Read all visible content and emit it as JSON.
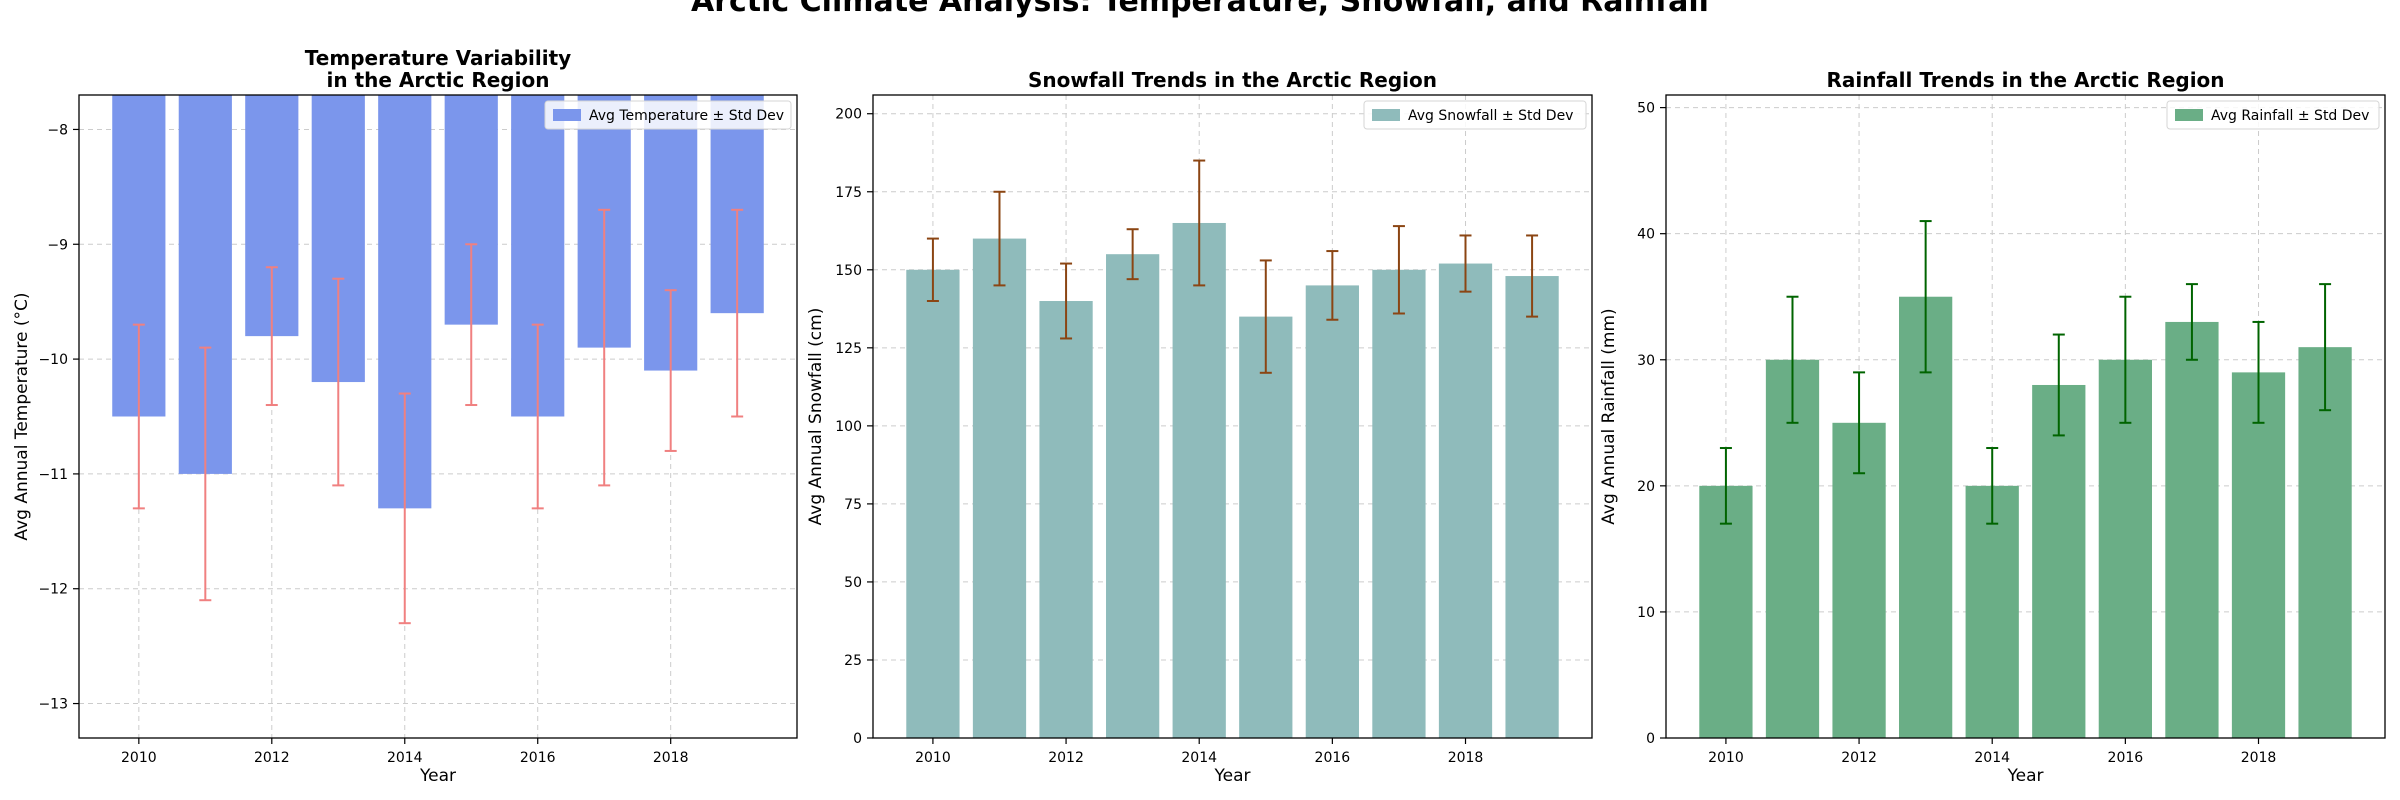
{
  "figure": {
    "suptitle": "Arctic Climate Analysis: Temperature, Snowfall, and Rainfall"
  },
  "chart_data": [
    {
      "type": "bar",
      "title": "Temperature Variability\nin the Arctic Region",
      "xlabel": "Year",
      "ylabel": "Avg Annual Temperature (°C)",
      "categories": [
        2010,
        2011,
        2012,
        2013,
        2014,
        2015,
        2016,
        2017,
        2018,
        2019
      ],
      "x_ticks": [
        2010,
        2012,
        2014,
        2016,
        2018
      ],
      "ylim": [
        -13.3,
        -7.7
      ],
      "y_ticks": [
        -13,
        -12,
        -11,
        -10,
        -9,
        -8
      ],
      "series": [
        {
          "name": "Avg Temperature ± Std Dev",
          "values": [
            -10.5,
            -11.0,
            -9.8,
            -10.2,
            -11.3,
            -9.7,
            -10.5,
            -9.9,
            -10.1,
            -9.6
          ],
          "errors": [
            0.8,
            1.1,
            0.6,
            0.9,
            1.0,
            0.7,
            0.8,
            1.2,
            0.7,
            0.9
          ]
        }
      ],
      "colors": {
        "bar": "#7b96ec",
        "error": "#f08080"
      },
      "legend": "upper-right",
      "grid": true
    },
    {
      "type": "bar",
      "title": "Snowfall Trends in the Arctic Region",
      "xlabel": "Year",
      "ylabel": "Avg Annual Snowfall (cm)",
      "categories": [
        2010,
        2011,
        2012,
        2013,
        2014,
        2015,
        2016,
        2017,
        2018,
        2019
      ],
      "x_ticks": [
        2010,
        2012,
        2014,
        2016,
        2018
      ],
      "ylim": [
        0,
        206
      ],
      "y_ticks": [
        0,
        25,
        50,
        75,
        100,
        125,
        150,
        175,
        200
      ],
      "series": [
        {
          "name": "Avg Snowfall ± Std Dev",
          "values": [
            150,
            160,
            140,
            155,
            165,
            135,
            145,
            150,
            152,
            148
          ],
          "errors": [
            10,
            15,
            12,
            8,
            20,
            18,
            11,
            14,
            9,
            13
          ]
        }
      ],
      "colors": {
        "bar": "#8fbbbb",
        "error": "#8b4513"
      },
      "legend": "upper-right",
      "grid": true
    },
    {
      "type": "bar",
      "title": "Rainfall Trends in the Arctic Region",
      "xlabel": "Year",
      "ylabel": "Avg Annual Rainfall (mm)",
      "categories": [
        2010,
        2011,
        2012,
        2013,
        2014,
        2015,
        2016,
        2017,
        2018,
        2019
      ],
      "x_ticks": [
        2010,
        2012,
        2014,
        2016,
        2018
      ],
      "ylim": [
        0,
        51
      ],
      "y_ticks": [
        0,
        10,
        20,
        30,
        40,
        50
      ],
      "series": [
        {
          "name": "Avg Rainfall ± Std Dev",
          "values": [
            20,
            30,
            25,
            35,
            20,
            28,
            30,
            33,
            29,
            31
          ],
          "errors": [
            3,
            5,
            4,
            6,
            3,
            4,
            5,
            3,
            4,
            5
          ]
        }
      ],
      "colors": {
        "bar": "#6aae86",
        "error": "#006400"
      },
      "legend": "upper-right",
      "grid": true
    }
  ]
}
